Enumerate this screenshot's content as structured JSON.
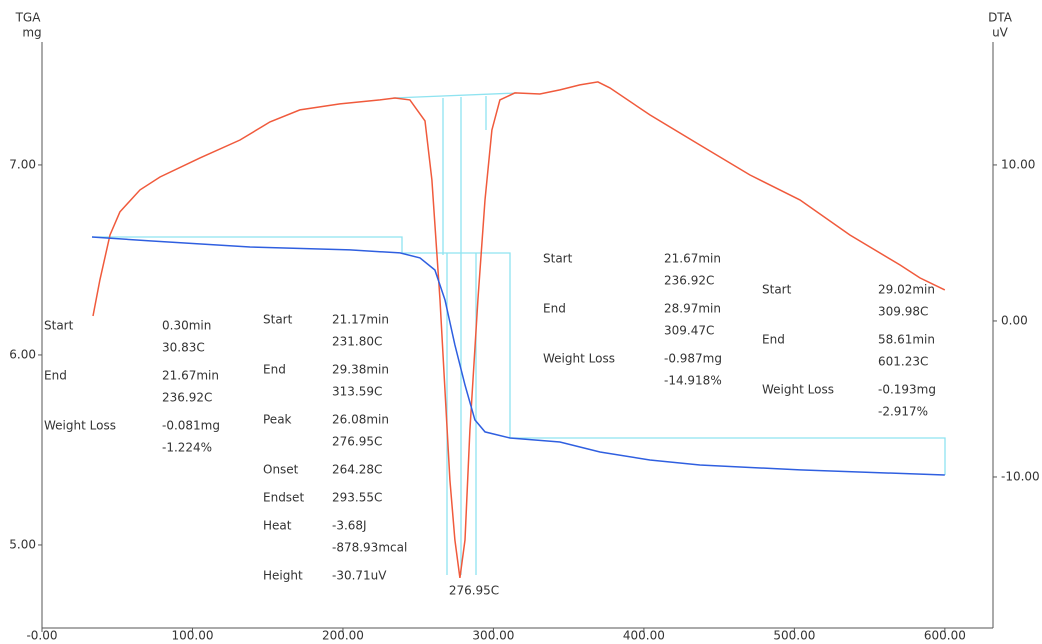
{
  "chart_data": {
    "type": "line",
    "ylabel": "TGA",
    "yunit": "mg",
    "y2label": "DTA",
    "y2unit": "uV",
    "xlim": [
      0,
      632
    ],
    "ylim": [
      4.563,
      7.647
    ],
    "y2lim": [
      -19.68,
      17.88
    ],
    "xticks": [
      {
        "value": 0,
        "label": "-0.00"
      },
      {
        "value": 100,
        "label": "100.00"
      },
      {
        "value": 200,
        "label": "200.00"
      },
      {
        "value": 300,
        "label": "300.00"
      },
      {
        "value": 400,
        "label": "400.00"
      },
      {
        "value": 500,
        "label": "500.00"
      },
      {
        "value": 600,
        "label": "600.00"
      }
    ],
    "yticks": [
      {
        "value": 5,
        "label": "5.00"
      },
      {
        "value": 6,
        "label": "6.00"
      },
      {
        "value": 7,
        "label": "7.00"
      }
    ],
    "y2ticks": [
      {
        "value": -10,
        "label": "-10.00"
      },
      {
        "value": 0,
        "label": "0.00"
      },
      {
        "value": 10,
        "label": "10.00"
      }
    ],
    "series": [
      {
        "color": "#f05a3c",
        "axis": "y2",
        "x": [
          33.9,
          38.5,
          45.2,
          51.8,
          65.1,
          78.4,
          105.0,
          131.6,
          151.5,
          171.4,
          198.0,
          224.6,
          234.6,
          244.5,
          254.5,
          259.1,
          264.5,
          271.1,
          274.4,
          277.7,
          281.1,
          284.4,
          289.7,
          294.4,
          299.0,
          304.3,
          314.3,
          330.9,
          344.2,
          357.5,
          369.4,
          377.4,
          404.0,
          437.2,
          470.4,
          503.7,
          536.9,
          570.1,
          583.4,
          600.0
        ],
        "values": [
          0.32,
          2.63,
          5.51,
          6.99,
          8.4,
          9.23,
          10.45,
          11.6,
          12.76,
          13.53,
          13.91,
          14.17,
          14.29,
          14.17,
          12.82,
          9.04,
          1.35,
          -10.19,
          -14.04,
          -16.47,
          -14.04,
          -6.99,
          1.35,
          7.76,
          12.24,
          14.17,
          14.62,
          14.55,
          14.81,
          15.13,
          15.32,
          14.94,
          13.21,
          11.28,
          9.36,
          7.76,
          5.51,
          3.59,
          2.76,
          1.99
        ]
      },
      {
        "color": "#2f5fe0",
        "x": [
          33.2,
          71.8,
          138.2,
          204.7,
          237.9,
          251.2,
          261.1,
          267.8,
          274.4,
          281.1,
          287.7,
          294.4,
          311.0,
          344.2,
          370.8,
          404.0,
          437.2,
          503.7,
          600.0
        ],
        "values": [
          6.621,
          6.6,
          6.568,
          6.553,
          6.537,
          6.511,
          6.447,
          6.289,
          6.053,
          5.842,
          5.658,
          5.595,
          5.563,
          5.542,
          5.489,
          5.447,
          5.421,
          5.395,
          5.368
        ]
      }
    ],
    "peak_label": "276.95C",
    "annotations": [
      {
        "items": [
          {
            "label": "Start",
            "values": [
              "0.30min",
              "30.83C"
            ]
          },
          {
            "label": "End",
            "values": [
              "21.67min",
              "236.92C"
            ]
          },
          {
            "label": "Weight Loss",
            "values": [
              "-0.081mg",
              "-1.224%"
            ]
          }
        ]
      },
      {
        "items": [
          {
            "label": "Start",
            "values": [
              "21.17min",
              "231.80C"
            ]
          },
          {
            "label": "End",
            "values": [
              "29.38min",
              "313.59C"
            ]
          },
          {
            "label": "Peak",
            "values": [
              "26.08min",
              "276.95C"
            ]
          },
          {
            "label": "Onset",
            "values": [
              "264.28C"
            ]
          },
          {
            "label": "Endset",
            "values": [
              "293.55C"
            ]
          },
          {
            "label": "Heat",
            "values": [
              "-3.68J",
              "-878.93mcal"
            ]
          },
          {
            "label": "Height",
            "values": [
              "-30.71uV"
            ]
          }
        ]
      },
      {
        "items": [
          {
            "label": "Start",
            "values": [
              "21.67min",
              "236.92C"
            ]
          },
          {
            "label": "End",
            "values": [
              "28.97min",
              "309.47C"
            ]
          },
          {
            "label": "Weight Loss",
            "values": [
              "-0.987mg",
              "-14.918%"
            ]
          }
        ]
      },
      {
        "items": [
          {
            "label": "Start",
            "values": [
              "29.02min",
              "309.98C"
            ]
          },
          {
            "label": "End",
            "values": [
              "58.61min",
              "601.23C"
            ]
          },
          {
            "label": "Weight Loss",
            "values": [
              "-0.193mg",
              "-2.917%"
            ]
          }
        ]
      }
    ]
  }
}
